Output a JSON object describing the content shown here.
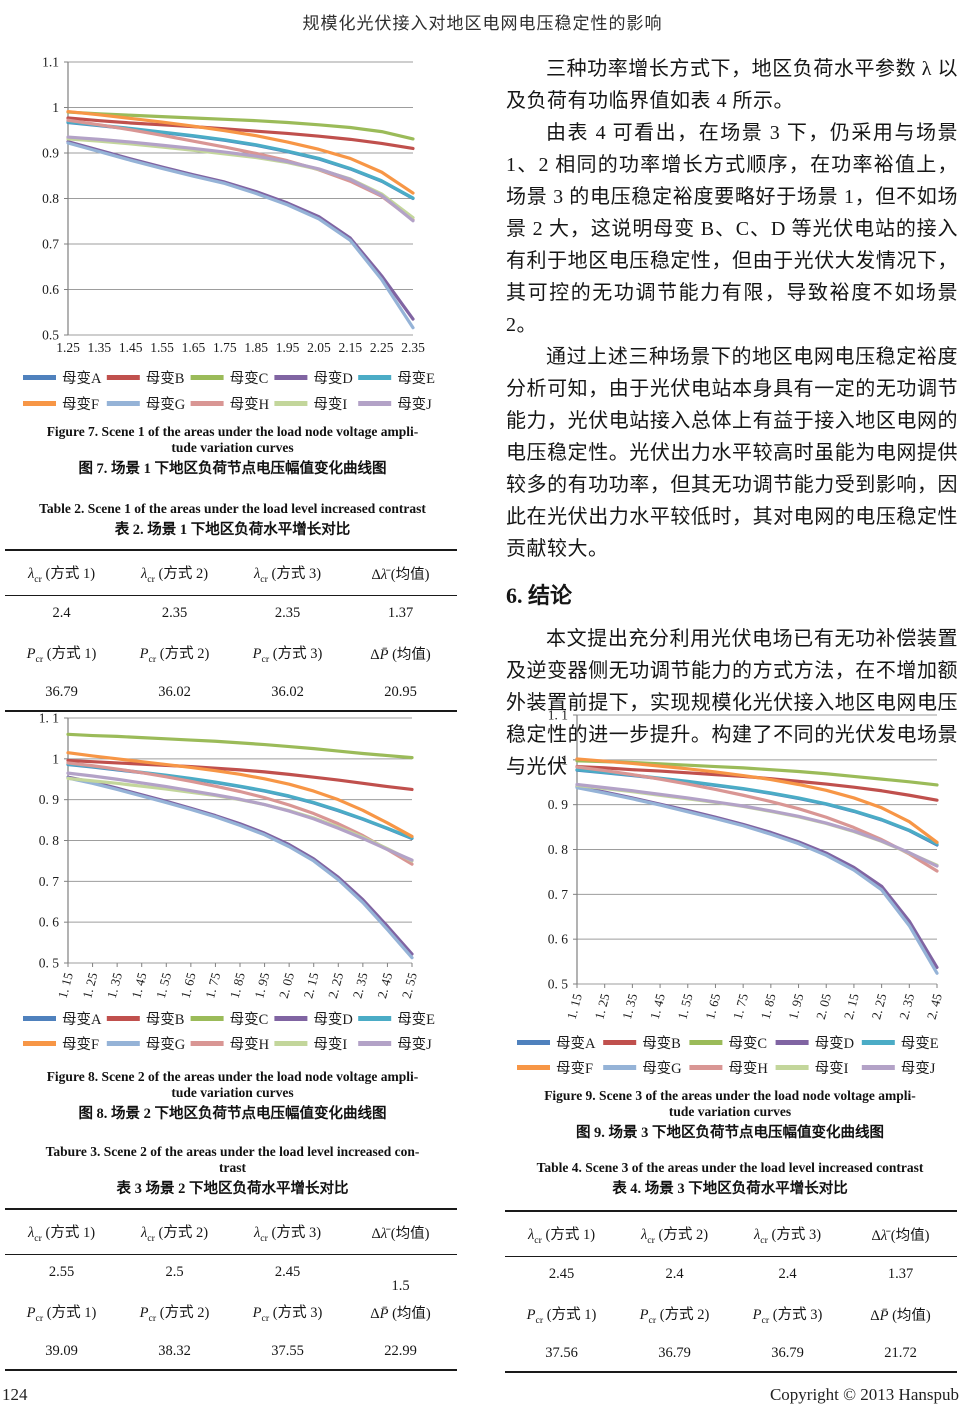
{
  "page": {
    "title": "规模化光伏接入对地区电网电压稳定性的影响",
    "footer": {
      "page_number": "124",
      "copyright": "Copyright © 2013 Hanspub"
    }
  },
  "right_column": {
    "paragraphs": [
      "三种功率增长方式下，地区负荷水平参数 λ 以及负荷有功临界值如表 4 所示。",
      "由表 4 可看出，在场景 3 下，仍采用与场景 1、2 相同的功率增长方式顺序，在功率裕值上，场景 3 的电压稳定裕度要略好于场景 1，但不如场景 2 大，这说明母变 B、C、D 等光伏电站的接入有利于地区电压稳定性，但由于光伏大发情况下，其可控的无功调节能力有限，导致裕度不如场景 2。",
      "通过上述三种场景下的地区电网电压稳定裕度分析可知，由于光伏电站本身具有一定的无功调节能力，光伏电站接入总体上有益于接入地区电网的电压稳定性。光伏出力水平较高时虽能为电网提供较多的有功功率，但其无功调节能力受到影响，因此在光伏出力水平较低时，其对电网的电压稳定性贡献较大。"
    ],
    "section_heading": "6. 结论",
    "conclusion_paragraph": "本文提出充分利用光伏电场已有无功补偿装置及逆变器侧无功调节能力的方式方法，在不增加额外装置前提下，实现规模化光伏接入地区电网电压稳定性的进一步提升。构建了不同的光伏发电场景与光伏"
  },
  "figures": [
    {
      "caption_en_lines": [
        "Figure 7. Scene 1 of the areas under the load node voltage ampli-",
        "tude variation curves"
      ],
      "caption_zh": "图 7. 场景 1 下地区负荷节点电压幅值变化曲线图",
      "chart_data": {
        "type": "line",
        "title": "场景 1 下地区负荷节点电压幅值变化曲线",
        "xlabel": "",
        "ylabel": "",
        "ylim": [
          0.5,
          1.1
        ],
        "ytick_values": [
          1.1,
          1.0,
          0.9,
          0.8,
          0.7,
          0.6,
          0.5
        ],
        "ytick_labels": [
          "1.1",
          "1",
          "0.9",
          "0.8",
          "0.7",
          "0.6",
          "0.5"
        ],
        "x_categories": [
          "1.25",
          "1.35",
          "1.45",
          "1.55",
          "1.65",
          "1.75",
          "1.85",
          "1.95",
          "2.05",
          "2.15",
          "2.25",
          "2.35"
        ],
        "x_label_rotation": 0,
        "grid": "horizontal",
        "legend_position": "bottom",
        "series": [
          {
            "name": "母变A",
            "color": "#4F81BD",
            "values": [
              0.967,
              0.96,
              0.953,
              0.945,
              0.937,
              0.928,
              0.917,
              0.903,
              0.887,
              0.865,
              0.838,
              0.8
            ]
          },
          {
            "name": "母变B",
            "color": "#C0504D",
            "values": [
              0.977,
              0.971,
              0.966,
              0.962,
              0.958,
              0.953,
              0.948,
              0.943,
              0.937,
              0.93,
              0.921,
              0.91
            ]
          },
          {
            "name": "母变C",
            "color": "#9BBB59",
            "values": [
              0.99,
              0.986,
              0.983,
              0.98,
              0.977,
              0.974,
              0.971,
              0.967,
              0.962,
              0.956,
              0.947,
              0.931
            ]
          },
          {
            "name": "母变D",
            "color": "#8064A2",
            "values": [
              0.925,
              0.906,
              0.887,
              0.869,
              0.852,
              0.836,
              0.815,
              0.79,
              0.76,
              0.713,
              0.63,
              0.535
            ]
          },
          {
            "name": "母变E",
            "color": "#4BACC6",
            "values": [
              0.968,
              0.961,
              0.954,
              0.946,
              0.938,
              0.929,
              0.918,
              0.904,
              0.888,
              0.866,
              0.839,
              0.801
            ]
          },
          {
            "name": "母变F",
            "color": "#F79646",
            "values": [
              0.991,
              0.984,
              0.976,
              0.968,
              0.959,
              0.949,
              0.938,
              0.924,
              0.908,
              0.888,
              0.858,
              0.812
            ]
          },
          {
            "name": "母变G",
            "color": "#95B3D7",
            "values": [
              0.922,
              0.903,
              0.884,
              0.866,
              0.849,
              0.833,
              0.811,
              0.786,
              0.755,
              0.708,
              0.622,
              0.516
            ]
          },
          {
            "name": "母变H",
            "color": "#D99694",
            "values": [
              0.972,
              0.962,
              0.951,
              0.939,
              0.926,
              0.913,
              0.899,
              0.883,
              0.863,
              0.838,
              0.805,
              0.753
            ]
          },
          {
            "name": "母变I",
            "color": "#C3D69B",
            "values": [
              0.931,
              0.926,
              0.92,
              0.913,
              0.906,
              0.898,
              0.89,
              0.879,
              0.864,
              0.843,
              0.81,
              0.758
            ]
          },
          {
            "name": "母变J",
            "color": "#B3A2C7",
            "values": [
              0.935,
              0.93,
              0.924,
              0.917,
              0.91,
              0.902,
              0.893,
              0.881,
              0.865,
              0.842,
              0.807,
              0.751
            ]
          }
        ]
      }
    },
    {
      "caption_en_lines": [
        "Figure 8. Scene 2 of the areas under the load node voltage ampli-",
        "tude variation curves"
      ],
      "caption_zh": "图 8. 场景 2 下地区负荷节点电压幅值变化曲线图",
      "chart_data": {
        "type": "line",
        "title": "场景 2 下地区负荷节点电压幅值变化曲线",
        "xlabel": "",
        "ylabel": "",
        "ylim": [
          0.5,
          1.1
        ],
        "ytick_values": [
          1.1,
          1.0,
          0.9,
          0.8,
          0.7,
          0.6,
          0.5
        ],
        "ytick_labels": [
          "1. 1",
          "1",
          "0. 9",
          "0. 8",
          "0. 7",
          "0. 6",
          "0. 5"
        ],
        "x_categories": [
          "1. 15",
          "1. 25",
          "1. 35",
          "1. 45",
          "1. 55",
          "1. 65",
          "1. 75",
          "1. 85",
          "1. 95",
          "2. 05",
          "2. 15",
          "2. 25",
          "2. 35",
          "2. 45",
          "2. 55"
        ],
        "x_label_rotation": -75,
        "grid": "horizontal",
        "legend_position": "bottom",
        "series": [
          {
            "name": "母变A",
            "color": "#4F81BD",
            "values": [
              0.986,
              0.98,
              0.973,
              0.966,
              0.959,
              0.951,
              0.942,
              0.932,
              0.921,
              0.908,
              0.892,
              0.873,
              0.852,
              0.829,
              0.805
            ]
          },
          {
            "name": "母变B",
            "color": "#C0504D",
            "values": [
              0.996,
              0.993,
              0.99,
              0.987,
              0.984,
              0.981,
              0.977,
              0.973,
              0.968,
              0.962,
              0.955,
              0.948,
              0.94,
              0.932,
              0.925
            ]
          },
          {
            "name": "母变C",
            "color": "#9BBB59",
            "values": [
              1.06,
              1.057,
              1.055,
              1.052,
              1.049,
              1.046,
              1.043,
              1.039,
              1.035,
              1.03,
              1.025,
              1.019,
              1.013,
              1.008,
              1.003
            ]
          },
          {
            "name": "母变D",
            "color": "#8064A2",
            "values": [
              0.955,
              0.943,
              0.928,
              0.912,
              0.896,
              0.879,
              0.861,
              0.841,
              0.818,
              0.79,
              0.755,
              0.71,
              0.655,
              0.59,
              0.522
            ]
          },
          {
            "name": "母变E",
            "color": "#4BACC6",
            "values": [
              0.987,
              0.981,
              0.974,
              0.967,
              0.96,
              0.952,
              0.943,
              0.933,
              0.922,
              0.909,
              0.893,
              0.874,
              0.853,
              0.83,
              0.806
            ]
          },
          {
            "name": "母变F",
            "color": "#F79646",
            "values": [
              1.015,
              1.007,
              1.0,
              0.993,
              0.986,
              0.979,
              0.971,
              0.962,
              0.951,
              0.938,
              0.921,
              0.9,
              0.874,
              0.843,
              0.81
            ]
          },
          {
            "name": "母变G",
            "color": "#95B3D7",
            "values": [
              0.953,
              0.94,
              0.925,
              0.909,
              0.893,
              0.876,
              0.858,
              0.837,
              0.814,
              0.785,
              0.75,
              0.704,
              0.648,
              0.582,
              0.513
            ]
          },
          {
            "name": "母变H",
            "color": "#D99694",
            "values": [
              0.99,
              0.983,
              0.975,
              0.966,
              0.956,
              0.945,
              0.933,
              0.92,
              0.905,
              0.887,
              0.866,
              0.841,
              0.812,
              0.778,
              0.742
            ]
          },
          {
            "name": "母变I",
            "color": "#C3D69B",
            "values": [
              0.952,
              0.946,
              0.94,
              0.933,
              0.926,
              0.918,
              0.91,
              0.9,
              0.888,
              0.873,
              0.855,
              0.833,
              0.808,
              0.78,
              0.75
            ]
          },
          {
            "name": "母变J",
            "color": "#B3A2C7",
            "values": [
              0.965,
              0.958,
              0.95,
              0.941,
              0.932,
              0.922,
              0.912,
              0.901,
              0.888,
              0.872,
              0.853,
              0.83,
              0.805,
              0.778,
              0.752
            ]
          }
        ]
      }
    },
    {
      "caption_en_lines": [
        "Figure 9. Scene 3 of the areas under the load node voltage ampli-",
        "tude variation curves"
      ],
      "caption_zh": "图 9. 场景 3 下地区负荷节点电压幅值变化曲线图",
      "chart_data": {
        "type": "line",
        "title": "场景 3 下地区负荷节点电压幅值变化曲线",
        "xlabel": "",
        "ylabel": "",
        "ylim": [
          0.5,
          1.1
        ],
        "ytick_values": [
          1.1,
          1.0,
          0.9,
          0.8,
          0.7,
          0.6,
          0.5
        ],
        "ytick_labels": [
          "1. 1",
          "1",
          "0. 9",
          "0. 8",
          "0. 7",
          "0. 6",
          "0. 5"
        ],
        "x_categories": [
          "1. 15",
          "1. 25",
          "1. 35",
          "1. 45",
          "1. 55",
          "1. 65",
          "1. 75",
          "1. 85",
          "1. 95",
          "2. 05",
          "2. 15",
          "2. 25",
          "2. 35",
          "2. 45"
        ],
        "x_label_rotation": -75,
        "grid": "horizontal",
        "legend_position": "bottom",
        "series": [
          {
            "name": "母变A",
            "color": "#4F81BD",
            "values": [
              0.977,
              0.971,
              0.965,
              0.958,
              0.951,
              0.943,
              0.935,
              0.925,
              0.914,
              0.901,
              0.885,
              0.866,
              0.842,
              0.81
            ]
          },
          {
            "name": "母变B",
            "color": "#C0504D",
            "values": [
              0.985,
              0.982,
              0.978,
              0.975,
              0.971,
              0.967,
              0.963,
              0.958,
              0.952,
              0.946,
              0.939,
              0.931,
              0.921,
              0.91
            ]
          },
          {
            "name": "母变C",
            "color": "#9BBB59",
            "values": [
              0.998,
              0.996,
              0.994,
              0.991,
              0.988,
              0.985,
              0.982,
              0.978,
              0.974,
              0.969,
              0.963,
              0.957,
              0.951,
              0.944
            ]
          },
          {
            "name": "母变D",
            "color": "#8064A2",
            "values": [
              0.94,
              0.928,
              0.915,
              0.901,
              0.887,
              0.872,
              0.856,
              0.838,
              0.817,
              0.792,
              0.76,
              0.718,
              0.64,
              0.537
            ]
          },
          {
            "name": "母变E",
            "color": "#4BACC6",
            "values": [
              0.978,
              0.972,
              0.966,
              0.959,
              0.952,
              0.944,
              0.936,
              0.926,
              0.915,
              0.902,
              0.886,
              0.867,
              0.843,
              0.812
            ]
          },
          {
            "name": "母变F",
            "color": "#F79646",
            "values": [
              1.002,
              0.997,
              0.992,
              0.986,
              0.98,
              0.973,
              0.965,
              0.956,
              0.945,
              0.932,
              0.915,
              0.893,
              0.862,
              0.816
            ]
          },
          {
            "name": "母变G",
            "color": "#95B3D7",
            "values": [
              0.938,
              0.926,
              0.913,
              0.899,
              0.884,
              0.869,
              0.853,
              0.834,
              0.813,
              0.787,
              0.754,
              0.71,
              0.63,
              0.524
            ]
          },
          {
            "name": "母变H",
            "color": "#D99694",
            "values": [
              0.984,
              0.976,
              0.967,
              0.957,
              0.946,
              0.934,
              0.921,
              0.907,
              0.891,
              0.872,
              0.849,
              0.822,
              0.79,
              0.752
            ]
          },
          {
            "name": "母变I",
            "color": "#C3D69B",
            "values": [
              0.943,
              0.936,
              0.929,
              0.921,
              0.913,
              0.905,
              0.896,
              0.885,
              0.873,
              0.858,
              0.84,
              0.818,
              0.792,
              0.765
            ]
          },
          {
            "name": "母变J",
            "color": "#B3A2C7",
            "values": [
              0.945,
              0.938,
              0.931,
              0.923,
              0.915,
              0.906,
              0.897,
              0.886,
              0.874,
              0.859,
              0.841,
              0.819,
              0.793,
              0.763
            ]
          }
        ]
      }
    }
  ],
  "tables": [
    {
      "caption_en_lines": [
        "Table 2. Scene 1 of the areas under the load level increased contrast"
      ],
      "caption_zh": "表 2. 场景 1 下地区负荷水平增长对比",
      "rows": [
        [
          "*λ*_{cr} (方式 1)",
          "*λ*_{cr} (方式 2)",
          "*λ*_{cr} (方式 3)",
          "Δ*λ̄* (均值)"
        ],
        [
          "2.4",
          "2.35",
          "2.35",
          "1.37"
        ],
        [
          "*P*_{cr} (方式 1)",
          "*P*_{cr} (方式 2)",
          "*P*_{cr} (方式 3)",
          "Δ*P̄* (均值)"
        ],
        [
          "36.79",
          "36.02",
          "36.02",
          "20.95"
        ]
      ]
    },
    {
      "caption_en_lines": [
        "Tabure 3. Scene 2 of the areas under the load level increased con-",
        "trast"
      ],
      "caption_zh": "表 3  场景 2 下地区负荷水平增长对比",
      "rows": [
        [
          "*λ*_{cr} (方式 1)",
          "*λ*_{cr} (方式 2)",
          "*λ*_{cr} (方式 3)",
          "Δ*λ̄* (均值)"
        ],
        [
          "2.55",
          "2.5",
          "2.45",
          {
            "text": "1.5",
            "dy": 14
          }
        ],
        [
          "*P*_{cr} (方式 1)",
          "*P*_{cr} (方式 2)",
          "*P*_{cr} (方式 3)",
          "Δ*P̄* (均值)"
        ],
        [
          "39.09",
          "38.32",
          "37.55",
          "22.99"
        ]
      ]
    },
    {
      "caption_en_lines": [
        "Table 4. Scene 3 of the areas under the load level increased contrast"
      ],
      "caption_zh": "表 4. 场景 3 下地区负荷水平增长对比",
      "rows": [
        [
          "*λ*_{cr} (方式 1)",
          "*λ*_{cr} (方式 2)",
          "*λ*_{cr} (方式 3)",
          "Δ*λ̄* (均值)"
        ],
        [
          "2.45",
          "2.4",
          "2.4",
          "1.37"
        ],
        [
          "*P*_{cr} (方式 1)",
          "*P*_{cr} (方式 2)",
          "*P*_{cr} (方式 3)",
          "Δ*P̄* (均值)"
        ],
        [
          "37.56",
          "36.79",
          "36.79",
          "21.72"
        ]
      ]
    }
  ]
}
